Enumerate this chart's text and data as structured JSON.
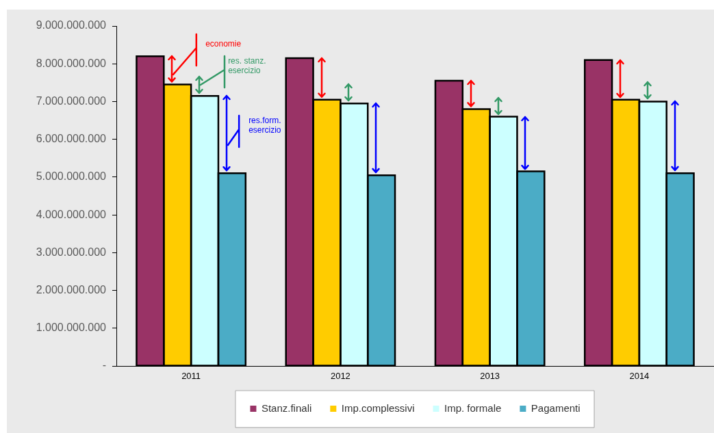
{
  "chart_data": {
    "type": "bar",
    "categories": [
      "2011",
      "2012",
      "2013",
      "2014"
    ],
    "series": [
      {
        "name": "Stanz.finali",
        "color": "#993366",
        "values": [
          8200000000,
          8150000000,
          7550000000,
          8100000000
        ]
      },
      {
        "name": "Imp.complessivi",
        "color": "#ffcc00",
        "values": [
          7450000000,
          7050000000,
          6800000000,
          7050000000
        ]
      },
      {
        "name": "Imp. formale",
        "color": "#ccffff",
        "values": [
          7150000000,
          6950000000,
          6600000000,
          7000000000
        ]
      },
      {
        "name": "Pagamenti",
        "color": "#4bacc6",
        "values": [
          5100000000,
          5050000000,
          5150000000,
          5100000000
        ]
      }
    ],
    "ylim": [
      0,
      9000000000
    ],
    "yticks": [
      {
        "value": 0,
        "label": "-"
      },
      {
        "value": 1000000000,
        "label": "1.000.000.000"
      },
      {
        "value": 2000000000,
        "label": "2.000.000.000"
      },
      {
        "value": 3000000000,
        "label": "3.000.000.000"
      },
      {
        "value": 4000000000,
        "label": "4.000.000.000"
      },
      {
        "value": 5000000000,
        "label": "5.000.000.000"
      },
      {
        "value": 6000000000,
        "label": "6.000.000.000"
      },
      {
        "value": 7000000000,
        "label": "7.000.000.000"
      },
      {
        "value": 8000000000,
        "label": "8.000.000.000"
      },
      {
        "value": 9000000000,
        "label": "9.000.000.000"
      }
    ],
    "legend": "bottom",
    "annotations": [
      "economie",
      "res. stanz. esercizio",
      "res.form. esercizio"
    ]
  }
}
